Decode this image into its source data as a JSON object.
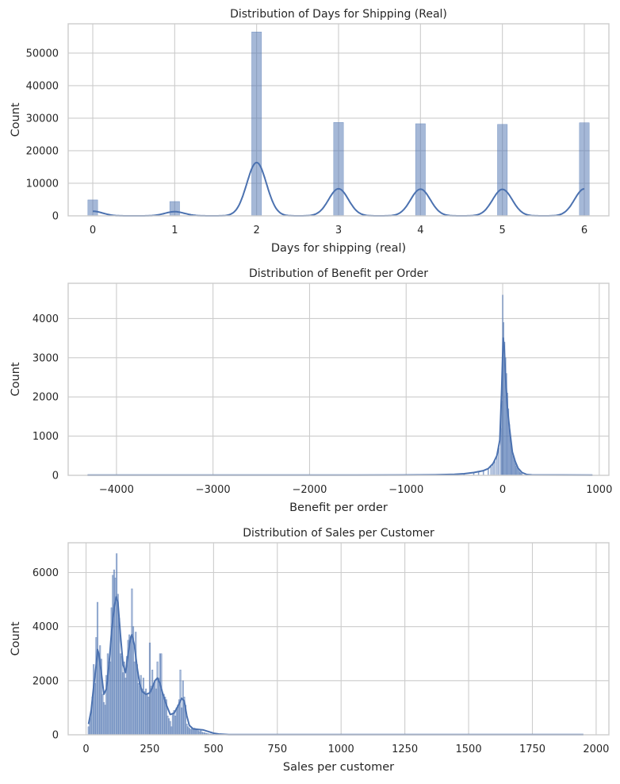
{
  "chart_data": [
    {
      "type": "histogram",
      "title": "Distribution of Days for Shipping (Real)",
      "xlabel": "Days for shipping (real)",
      "ylabel": "Count",
      "xlim": [
        -0.3,
        6.3
      ],
      "ylim": [
        0,
        59000
      ],
      "xticks": [
        0,
        1,
        2,
        3,
        4,
        5,
        6
      ],
      "yticks": [
        0,
        10000,
        20000,
        30000,
        40000,
        50000
      ],
      "bin_width": 0.12,
      "bins": [
        {
          "x": 0,
          "count": 4900
        },
        {
          "x": 1,
          "count": 4400
        },
        {
          "x": 2,
          "count": 56500
        },
        {
          "x": 3,
          "count": 28700
        },
        {
          "x": 4,
          "count": 28300
        },
        {
          "x": 5,
          "count": 28100
        },
        {
          "x": 6,
          "count": 28600
        }
      ],
      "kde": {
        "bandwidth": 0.12,
        "peak_scale": 0.29
      },
      "grid": true
    },
    {
      "type": "histogram",
      "title": "Distribution of Benefit per Order",
      "xlabel": "Benefit per order",
      "ylabel": "Count",
      "xlim": [
        -4500,
        1100
      ],
      "ylim": [
        0,
        4900
      ],
      "xticks": [
        -4000,
        -3000,
        -2000,
        -1000,
        0,
        1000
      ],
      "xtick_labels": [
        "−4000",
        "−3000",
        "−2000",
        "−1000",
        "0",
        "1000"
      ],
      "yticks": [
        0,
        1000,
        2000,
        3000,
        4000
      ],
      "bin_width": 8,
      "bins": [
        {
          "x": -4270,
          "count": 8
        },
        {
          "x": -3000,
          "count": 6
        },
        {
          "x": -2000,
          "count": 8
        },
        {
          "x": -1200,
          "count": 10
        },
        {
          "x": -800,
          "count": 14
        },
        {
          "x": -600,
          "count": 20
        },
        {
          "x": -500,
          "count": 30
        },
        {
          "x": -400,
          "count": 45
        },
        {
          "x": -300,
          "count": 70
        },
        {
          "x": -250,
          "count": 90
        },
        {
          "x": -200,
          "count": 120
        },
        {
          "x": -150,
          "count": 180
        },
        {
          "x": -120,
          "count": 220
        },
        {
          "x": -100,
          "count": 280
        },
        {
          "x": -80,
          "count": 350
        },
        {
          "x": -60,
          "count": 480
        },
        {
          "x": -40,
          "count": 700
        },
        {
          "x": -20,
          "count": 1200
        },
        {
          "x": -10,
          "count": 1900
        },
        {
          "x": 0,
          "count": 4600
        },
        {
          "x": 10,
          "count": 3900
        },
        {
          "x": 20,
          "count": 3400
        },
        {
          "x": 30,
          "count": 3000
        },
        {
          "x": 40,
          "count": 2600
        },
        {
          "x": 50,
          "count": 2100
        },
        {
          "x": 60,
          "count": 1700
        },
        {
          "x": 70,
          "count": 1300
        },
        {
          "x": 80,
          "count": 1000
        },
        {
          "x": 90,
          "count": 800
        },
        {
          "x": 100,
          "count": 600
        },
        {
          "x": 110,
          "count": 480
        },
        {
          "x": 120,
          "count": 380
        },
        {
          "x": 130,
          "count": 300
        },
        {
          "x": 140,
          "count": 240
        },
        {
          "x": 150,
          "count": 190
        },
        {
          "x": 160,
          "count": 150
        },
        {
          "x": 170,
          "count": 110
        },
        {
          "x": 180,
          "count": 80
        },
        {
          "x": 190,
          "count": 55
        },
        {
          "x": 200,
          "count": 40
        },
        {
          "x": 250,
          "count": 25
        },
        {
          "x": 300,
          "count": 18
        },
        {
          "x": 400,
          "count": 12
        },
        {
          "x": 600,
          "count": 8
        },
        {
          "x": 900,
          "count": 6
        }
      ],
      "kde_points": [
        [
          -4300,
          5
        ],
        [
          -1500,
          5
        ],
        [
          -700,
          12
        ],
        [
          -500,
          25
        ],
        [
          -400,
          40
        ],
        [
          -300,
          70
        ],
        [
          -200,
          120
        ],
        [
          -150,
          170
        ],
        [
          -100,
          300
        ],
        [
          -60,
          500
        ],
        [
          -30,
          900
        ],
        [
          -10,
          2200
        ],
        [
          5,
          3500
        ],
        [
          15,
          3300
        ],
        [
          30,
          2500
        ],
        [
          50,
          1700
        ],
        [
          70,
          1200
        ],
        [
          100,
          600
        ],
        [
          130,
          350
        ],
        [
          160,
          180
        ],
        [
          200,
          70
        ],
        [
          250,
          20
        ],
        [
          300,
          10
        ],
        [
          930,
          5
        ]
      ],
      "grid": true
    },
    {
      "type": "histogram",
      "title": "Distribution of Sales per Customer",
      "xlabel": "Sales per customer",
      "ylabel": "Count",
      "xlim": [
        -70,
        2050
      ],
      "ylim": [
        0,
        7100
      ],
      "xticks": [
        0,
        250,
        500,
        750,
        1000,
        1250,
        1500,
        1750,
        2000
      ],
      "yticks": [
        0,
        2000,
        4000,
        6000
      ],
      "bin_width": 5,
      "bins": [
        {
          "x": 10,
          "count": 300
        },
        {
          "x": 15,
          "count": 600
        },
        {
          "x": 20,
          "count": 900
        },
        {
          "x": 25,
          "count": 1400
        },
        {
          "x": 30,
          "count": 2600
        },
        {
          "x": 35,
          "count": 1900
        },
        {
          "x": 40,
          "count": 3600
        },
        {
          "x": 45,
          "count": 4900
        },
        {
          "x": 50,
          "count": 3000
        },
        {
          "x": 55,
          "count": 3300
        },
        {
          "x": 60,
          "count": 2800
        },
        {
          "x": 65,
          "count": 1500
        },
        {
          "x": 70,
          "count": 1200
        },
        {
          "x": 75,
          "count": 1100
        },
        {
          "x": 80,
          "count": 2200
        },
        {
          "x": 85,
          "count": 3000
        },
        {
          "x": 90,
          "count": 2700
        },
        {
          "x": 95,
          "count": 2700
        },
        {
          "x": 100,
          "count": 4700
        },
        {
          "x": 105,
          "count": 5900
        },
        {
          "x": 110,
          "count": 6100
        },
        {
          "x": 115,
          "count": 5800
        },
        {
          "x": 120,
          "count": 6700
        },
        {
          "x": 125,
          "count": 5200
        },
        {
          "x": 130,
          "count": 4300
        },
        {
          "x": 135,
          "count": 3000
        },
        {
          "x": 140,
          "count": 2900
        },
        {
          "x": 145,
          "count": 2300
        },
        {
          "x": 150,
          "count": 2700
        },
        {
          "x": 155,
          "count": 2100
        },
        {
          "x": 160,
          "count": 2900
        },
        {
          "x": 165,
          "count": 3500
        },
        {
          "x": 170,
          "count": 3700
        },
        {
          "x": 175,
          "count": 3600
        },
        {
          "x": 180,
          "count": 5400
        },
        {
          "x": 185,
          "count": 4000
        },
        {
          "x": 190,
          "count": 2700
        },
        {
          "x": 195,
          "count": 3800
        },
        {
          "x": 200,
          "count": 2600
        },
        {
          "x": 205,
          "count": 1900
        },
        {
          "x": 210,
          "count": 1800
        },
        {
          "x": 215,
          "count": 2200
        },
        {
          "x": 220,
          "count": 1700
        },
        {
          "x": 225,
          "count": 2100
        },
        {
          "x": 230,
          "count": 1600
        },
        {
          "x": 235,
          "count": 1700
        },
        {
          "x": 240,
          "count": 1500
        },
        {
          "x": 245,
          "count": 1400
        },
        {
          "x": 250,
          "count": 3400
        },
        {
          "x": 255,
          "count": 1800
        },
        {
          "x": 260,
          "count": 2400
        },
        {
          "x": 265,
          "count": 1900
        },
        {
          "x": 270,
          "count": 2000
        },
        {
          "x": 275,
          "count": 1700
        },
        {
          "x": 280,
          "count": 2700
        },
        {
          "x": 285,
          "count": 2100
        },
        {
          "x": 290,
          "count": 3000
        },
        {
          "x": 295,
          "count": 3000
        },
        {
          "x": 300,
          "count": 1500
        },
        {
          "x": 305,
          "count": 1500
        },
        {
          "x": 310,
          "count": 1400
        },
        {
          "x": 315,
          "count": 1300
        },
        {
          "x": 320,
          "count": 700
        },
        {
          "x": 325,
          "count": 600
        },
        {
          "x": 330,
          "count": 500
        },
        {
          "x": 335,
          "count": 300
        },
        {
          "x": 340,
          "count": 800
        },
        {
          "x": 345,
          "count": 900
        },
        {
          "x": 350,
          "count": 700
        },
        {
          "x": 355,
          "count": 1000
        },
        {
          "x": 360,
          "count": 1100
        },
        {
          "x": 365,
          "count": 1300
        },
        {
          "x": 370,
          "count": 2400
        },
        {
          "x": 375,
          "count": 1000
        },
        {
          "x": 380,
          "count": 2000
        },
        {
          "x": 385,
          "count": 1400
        },
        {
          "x": 390,
          "count": 1100
        },
        {
          "x": 395,
          "count": 400
        },
        {
          "x": 400,
          "count": 300
        },
        {
          "x": 405,
          "count": 250
        },
        {
          "x": 410,
          "count": 200
        },
        {
          "x": 415,
          "count": 250
        },
        {
          "x": 420,
          "count": 200
        },
        {
          "x": 425,
          "count": 250
        },
        {
          "x": 430,
          "count": 200
        },
        {
          "x": 435,
          "count": 200
        },
        {
          "x": 440,
          "count": 150
        },
        {
          "x": 445,
          "count": 120
        },
        {
          "x": 450,
          "count": 150
        },
        {
          "x": 455,
          "count": 100
        },
        {
          "x": 460,
          "count": 80
        },
        {
          "x": 465,
          "count": 80
        },
        {
          "x": 470,
          "count": 60
        },
        {
          "x": 475,
          "count": 50
        },
        {
          "x": 480,
          "count": 40
        },
        {
          "x": 485,
          "count": 30
        },
        {
          "x": 490,
          "count": 30
        },
        {
          "x": 495,
          "count": 20
        },
        {
          "x": 500,
          "count": 20
        },
        {
          "x": 1250,
          "count": 15
        },
        {
          "x": 1300,
          "count": 12
        },
        {
          "x": 1400,
          "count": 12
        },
        {
          "x": 1500,
          "count": 10
        },
        {
          "x": 1600,
          "count": 10
        },
        {
          "x": 1940,
          "count": 15
        }
      ],
      "kde_points": [
        [
          10,
          400
        ],
        [
          20,
          900
        ],
        [
          30,
          1800
        ],
        [
          40,
          2600
        ],
        [
          45,
          3150
        ],
        [
          50,
          3000
        ],
        [
          60,
          2300
        ],
        [
          70,
          1500
        ],
        [
          80,
          1700
        ],
        [
          90,
          2600
        ],
        [
          100,
          3800
        ],
        [
          110,
          4700
        ],
        [
          118,
          5100
        ],
        [
          125,
          4900
        ],
        [
          135,
          3700
        ],
        [
          145,
          2600
        ],
        [
          155,
          2300
        ],
        [
          165,
          3000
        ],
        [
          175,
          3600
        ],
        [
          180,
          3700
        ],
        [
          190,
          3300
        ],
        [
          200,
          2500
        ],
        [
          210,
          1900
        ],
        [
          220,
          1600
        ],
        [
          235,
          1500
        ],
        [
          250,
          1550
        ],
        [
          260,
          1750
        ],
        [
          270,
          2000
        ],
        [
          280,
          2100
        ],
        [
          290,
          1900
        ],
        [
          300,
          1550
        ],
        [
          315,
          1100
        ],
        [
          330,
          750
        ],
        [
          345,
          800
        ],
        [
          360,
          1050
        ],
        [
          375,
          1350
        ],
        [
          385,
          1250
        ],
        [
          395,
          700
        ],
        [
          405,
          350
        ],
        [
          420,
          220
        ],
        [
          440,
          200
        ],
        [
          460,
          180
        ],
        [
          480,
          120
        ],
        [
          500,
          60
        ],
        [
          520,
          30
        ],
        [
          560,
          10
        ],
        [
          600,
          5
        ],
        [
          1950,
          5
        ]
      ],
      "grid": true
    }
  ]
}
